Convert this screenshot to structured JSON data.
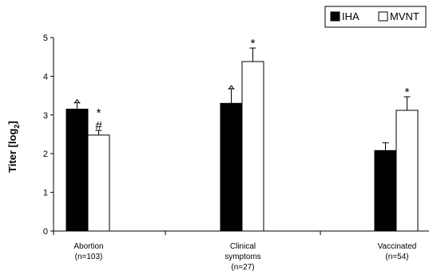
{
  "chart_data": {
    "type": "bar",
    "ylabel": "Titer [log",
    "ylabel_sub": "2",
    "ylabel_close": "]",
    "ylim": [
      0,
      5
    ],
    "yticks": [
      "0",
      "1",
      "2",
      "3",
      "4",
      "5"
    ],
    "categories": [
      [
        "Abortion",
        "(n=103)"
      ],
      [
        "Clinical",
        "symptoms",
        "(n=27)"
      ],
      [
        "Vaccinated",
        "(n=54)"
      ]
    ],
    "series": [
      {
        "name": "IHA",
        "color": "#000000",
        "values": [
          3.15,
          3.3,
          2.08
        ],
        "errors": [
          0.17,
          0.38,
          0.2
        ]
      },
      {
        "name": "MVNT",
        "color": "#ffffff",
        "values": [
          2.48,
          4.38,
          3.12
        ],
        "errors": [
          0.12,
          0.35,
          0.35
        ]
      }
    ],
    "annotations": [
      {
        "category": 0,
        "series": 0,
        "text": "^"
      },
      {
        "category": 0,
        "series": 1,
        "text": "#"
      },
      {
        "category": 0,
        "series": 1,
        "text": "*"
      },
      {
        "category": 1,
        "series": 0,
        "text": "^"
      },
      {
        "category": 1,
        "series": 1,
        "text": "*"
      },
      {
        "category": 2,
        "series": 1,
        "text": "*"
      }
    ],
    "legend": "top-right",
    "grid": false
  }
}
